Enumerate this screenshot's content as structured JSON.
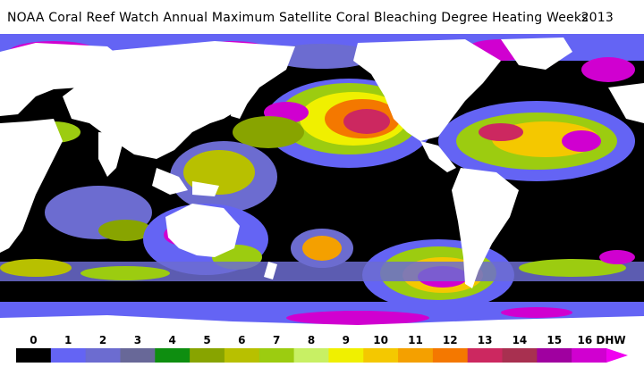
{
  "title": "NOAA Coral Reef Watch Annual Maximum Satellite Coral Bleaching Degree Heating Weeks",
  "year": "2013",
  "legend": {
    "ticks": [
      "0",
      "1",
      "2",
      "3",
      "4",
      "5",
      "6",
      "7",
      "8",
      "9",
      "10",
      "11",
      "12",
      "13",
      "14",
      "15",
      "16 DHW"
    ],
    "colors": [
      "#000000",
      "#6464f4",
      "#6c6cd0",
      "#686898",
      "#0e8e10",
      "#88a400",
      "#b8c000",
      "#9ccc10",
      "#c8f064",
      "#f0f000",
      "#f4c800",
      "#f4a000",
      "#f47800",
      "#cc2860",
      "#a83050",
      "#a000a0",
      "#d000d0"
    ],
    "arrow_color": "#f000f0"
  },
  "map": {
    "land_color": "#ffffff",
    "ocean_color": "#000000"
  }
}
